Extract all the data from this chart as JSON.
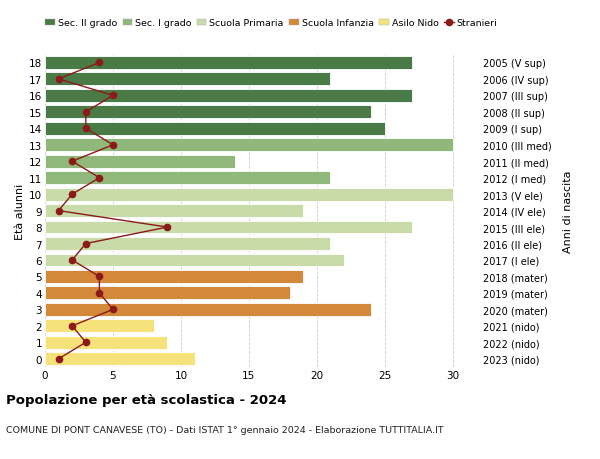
{
  "ages": [
    0,
    1,
    2,
    3,
    4,
    5,
    6,
    7,
    8,
    9,
    10,
    11,
    12,
    13,
    14,
    15,
    16,
    17,
    18
  ],
  "years": [
    "2023 (nido)",
    "2022 (nido)",
    "2021 (nido)",
    "2020 (mater)",
    "2019 (mater)",
    "2018 (mater)",
    "2017 (I ele)",
    "2016 (II ele)",
    "2015 (III ele)",
    "2014 (IV ele)",
    "2013 (V ele)",
    "2012 (I med)",
    "2011 (II med)",
    "2010 (III med)",
    "2009 (I sup)",
    "2008 (II sup)",
    "2007 (III sup)",
    "2006 (IV sup)",
    "2005 (V sup)"
  ],
  "bar_values": [
    11,
    9,
    8,
    24,
    18,
    19,
    22,
    21,
    27,
    19,
    30,
    21,
    14,
    30,
    25,
    24,
    27,
    21,
    27
  ],
  "bar_colors": [
    "#f5e27b",
    "#f5e27b",
    "#f5e27b",
    "#d4883a",
    "#d4883a",
    "#d4883a",
    "#c8dba8",
    "#c8dba8",
    "#c8dba8",
    "#c8dba8",
    "#c8dba8",
    "#8fb87a",
    "#8fb87a",
    "#8fb87a",
    "#4a7a46",
    "#4a7a46",
    "#4a7a46",
    "#4a7a46",
    "#4a7a46"
  ],
  "stranieri_values": [
    1,
    3,
    2,
    5,
    4,
    4,
    2,
    3,
    9,
    1,
    2,
    4,
    2,
    5,
    3,
    3,
    5,
    1,
    4
  ],
  "legend_labels": [
    "Sec. II grado",
    "Sec. I grado",
    "Scuola Primaria",
    "Scuola Infanzia",
    "Asilo Nido",
    "Stranieri"
  ],
  "legend_colors": [
    "#4a7a46",
    "#8fb87a",
    "#c8dba8",
    "#d4883a",
    "#f5e27b",
    "#8b1a1a"
  ],
  "ylabel": "Età alunni",
  "ylabel2": "Anni di nascita",
  "title": "Popolazione per età scolastica - 2024",
  "subtitle": "COMUNE DI PONT CANAVESE (TO) - Dati ISTAT 1° gennaio 2024 - Elaborazione TUTTITALIA.IT",
  "xlim": [
    0,
    32
  ],
  "background_color": "#ffffff",
  "bar_height": 0.78,
  "stranieri_color": "#8b1a1a"
}
